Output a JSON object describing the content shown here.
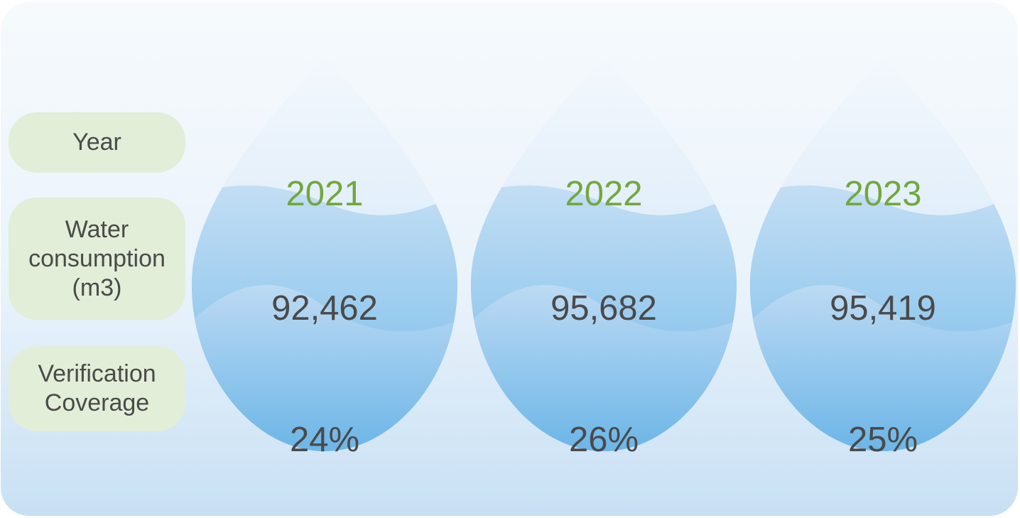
{
  "row_labels": {
    "year": "Year",
    "water_line1": "Water",
    "water_line2": "consumption",
    "water_line3": "(m3)",
    "verification_line1": "Verification",
    "verification_line2": "Coverage"
  },
  "columns": [
    {
      "year": "2021",
      "water_consumption": "92,462",
      "verification_coverage": "24%"
    },
    {
      "year": "2022",
      "water_consumption": "95,682",
      "verification_coverage": "26%"
    },
    {
      "year": "2023",
      "water_consumption": "95,419",
      "verification_coverage": "25%"
    }
  ],
  "colors": {
    "year_text": "#72a73f",
    "value_text": "#4a4a4a",
    "label_bg": "#e2eed8"
  }
}
